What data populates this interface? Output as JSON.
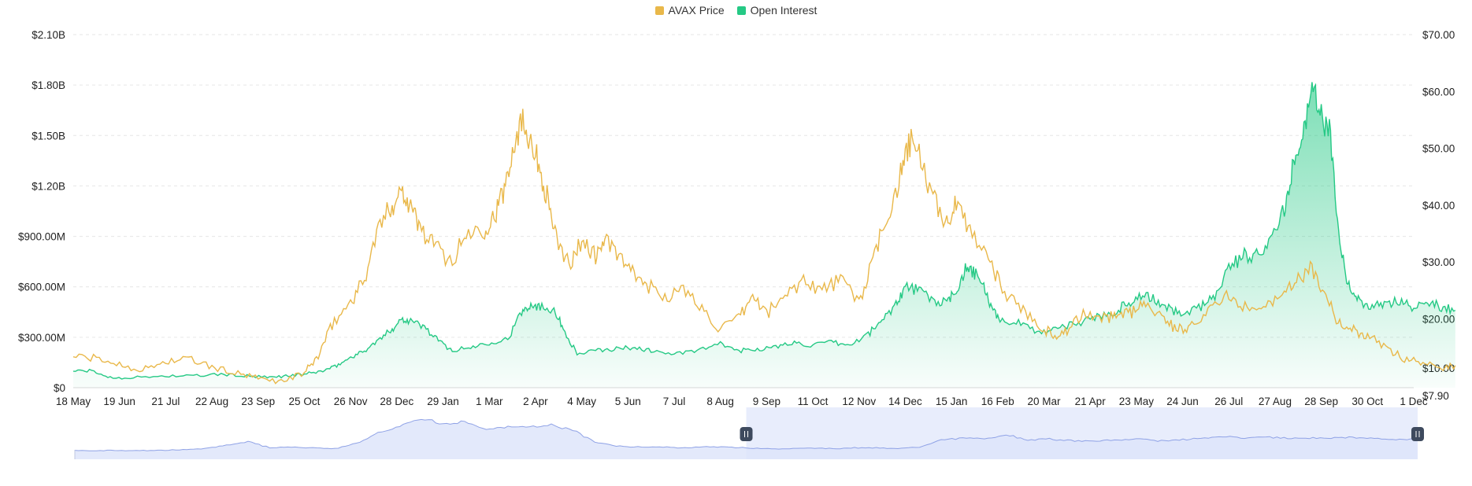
{
  "colors": {
    "price": "#E9B84A",
    "open_interest": "#25C985",
    "grid": "#E6E6E6",
    "navigator_line": "#8FA2E6",
    "navigator_fill": "#DCE3FA",
    "navigator_selection": "#E8EDFC",
    "handle": "#3E4A5E"
  },
  "legend": [
    {
      "label": "AVAX Price",
      "series": "price"
    },
    {
      "label": "Open Interest",
      "series": "open_interest"
    }
  ],
  "chart_data": {
    "type": "line",
    "title": "",
    "xlabel": "",
    "x_categories": [
      "18 May",
      "19 Jun",
      "21 Jul",
      "22 Aug",
      "23 Sep",
      "25 Oct",
      "26 Nov",
      "28 Dec",
      "29 Jan",
      "1 Mar",
      "2 Apr",
      "4 May",
      "5 Jun",
      "7 Jul",
      "8 Aug",
      "9 Sep",
      "11 Oct",
      "12 Nov",
      "14 Dec",
      "15 Jan",
      "16 Feb",
      "20 Mar",
      "21 Apr",
      "23 May",
      "24 Jun",
      "26 Jul",
      "27 Aug",
      "28 Sep",
      "30 Oct",
      "1 Dec"
    ],
    "left_axis": {
      "label": "",
      "ylim": [
        0,
        2100000000
      ],
      "ticks": [
        "$0",
        "$300.00M",
        "$600.00M",
        "$900.00M",
        "$1.20B",
        "$1.50B",
        "$1.80B",
        "$2.10B"
      ]
    },
    "right_axis": {
      "label": "",
      "ylim": [
        7.9,
        70
      ],
      "ticks": [
        "$7.90",
        "$10.00",
        "$20.00",
        "$30.00",
        "$40.00",
        "$50.00",
        "$60.00",
        "$70.00"
      ]
    },
    "grid": true,
    "legend_position": "top-center",
    "series": [
      {
        "name": "AVAX Price",
        "axis": "right",
        "type": "line",
        "points": [
          [
            0,
            13.5
          ],
          [
            0.5,
            13.0
          ],
          [
            1,
            12.0
          ],
          [
            1.5,
            11.0
          ],
          [
            2,
            12.5
          ],
          [
            2.5,
            13.0
          ],
          [
            3,
            11.5
          ],
          [
            3.5,
            10.5
          ],
          [
            4,
            9.5
          ],
          [
            4.5,
            9.0
          ],
          [
            5,
            10.5
          ],
          [
            5.3,
            13.5
          ],
          [
            5.6,
            19
          ],
          [
            6,
            23
          ],
          [
            6.3,
            27
          ],
          [
            6.6,
            36
          ],
          [
            6.9,
            40
          ],
          [
            7.1,
            43
          ],
          [
            7.3,
            40
          ],
          [
            7.5,
            36
          ],
          [
            7.8,
            33
          ],
          [
            8.2,
            30
          ],
          [
            8.5,
            35
          ],
          [
            8.9,
            36
          ],
          [
            9.1,
            38
          ],
          [
            9.3,
            42
          ],
          [
            9.5,
            50
          ],
          [
            9.7,
            55
          ],
          [
            9.9,
            52
          ],
          [
            10.1,
            46
          ],
          [
            10.3,
            40
          ],
          [
            10.5,
            32
          ],
          [
            10.8,
            30
          ],
          [
            11,
            34
          ],
          [
            11.3,
            31
          ],
          [
            11.5,
            34
          ],
          [
            11.8,
            31
          ],
          [
            12.1,
            28
          ],
          [
            12.4,
            26
          ],
          [
            12.8,
            24
          ],
          [
            13.2,
            25
          ],
          [
            13.6,
            22
          ],
          [
            14,
            18
          ],
          [
            14.4,
            20
          ],
          [
            14.7,
            24
          ],
          [
            15,
            21
          ],
          [
            15.4,
            24
          ],
          [
            15.8,
            27
          ],
          [
            16.2,
            25
          ],
          [
            16.6,
            27
          ],
          [
            17,
            23
          ],
          [
            17.3,
            30
          ],
          [
            17.6,
            38
          ],
          [
            17.9,
            45
          ],
          [
            18.1,
            51
          ],
          [
            18.3,
            49
          ],
          [
            18.6,
            41
          ],
          [
            18.9,
            37
          ],
          [
            19.1,
            40
          ],
          [
            19.4,
            36
          ],
          [
            19.8,
            31
          ],
          [
            20.1,
            25
          ],
          [
            20.5,
            22
          ],
          [
            20.9,
            19
          ],
          [
            21.2,
            17
          ],
          [
            21.5,
            18
          ],
          [
            21.9,
            21
          ],
          [
            22.3,
            20
          ],
          [
            22.6,
            21
          ],
          [
            22.9,
            21
          ],
          [
            23.2,
            23
          ],
          [
            23.6,
            20
          ],
          [
            23.9,
            18
          ],
          [
            24.2,
            19
          ],
          [
            24.6,
            22
          ],
          [
            25,
            24
          ],
          [
            25.4,
            22
          ],
          [
            25.8,
            23
          ],
          [
            26.2,
            24
          ],
          [
            26.5,
            27
          ],
          [
            26.8,
            29
          ],
          [
            27.1,
            24
          ],
          [
            27.4,
            19
          ],
          [
            27.7,
            18
          ],
          [
            28,
            17
          ],
          [
            28.4,
            15
          ],
          [
            28.8,
            13
          ],
          [
            29.2,
            12.5
          ],
          [
            29.6,
            11.5
          ],
          [
            29.9,
            11.8
          ]
        ]
      },
      {
        "name": "Open Interest",
        "axis": "left",
        "type": "area",
        "points": [
          [
            0,
            0.1
          ],
          [
            0.4,
            0.1
          ],
          [
            0.8,
            0.06
          ],
          [
            1.3,
            0.06
          ],
          [
            2,
            0.07
          ],
          [
            2.6,
            0.07
          ],
          [
            3.2,
            0.08
          ],
          [
            3.7,
            0.07
          ],
          [
            4.2,
            0.06
          ],
          [
            4.6,
            0.07
          ],
          [
            5,
            0.08
          ],
          [
            5.4,
            0.1
          ],
          [
            5.7,
            0.13
          ],
          [
            6,
            0.18
          ],
          [
            6.3,
            0.22
          ],
          [
            6.6,
            0.28
          ],
          [
            6.9,
            0.35
          ],
          [
            7.1,
            0.41
          ],
          [
            7.3,
            0.4
          ],
          [
            7.6,
            0.36
          ],
          [
            7.9,
            0.28
          ],
          [
            8.2,
            0.22
          ],
          [
            8.6,
            0.24
          ],
          [
            9,
            0.27
          ],
          [
            9.4,
            0.29
          ],
          [
            9.7,
            0.45
          ],
          [
            9.9,
            0.5
          ],
          [
            10.1,
            0.48
          ],
          [
            10.4,
            0.47
          ],
          [
            10.6,
            0.35
          ],
          [
            10.9,
            0.2
          ],
          [
            11.3,
            0.22
          ],
          [
            11.7,
            0.23
          ],
          [
            12.1,
            0.24
          ],
          [
            12.5,
            0.22
          ],
          [
            13,
            0.2
          ],
          [
            13.5,
            0.22
          ],
          [
            14,
            0.26
          ],
          [
            14.4,
            0.22
          ],
          [
            14.8,
            0.23
          ],
          [
            15.2,
            0.24
          ],
          [
            15.6,
            0.27
          ],
          [
            16,
            0.25
          ],
          [
            16.4,
            0.27
          ],
          [
            16.8,
            0.25
          ],
          [
            17.2,
            0.32
          ],
          [
            17.5,
            0.4
          ],
          [
            17.8,
            0.5
          ],
          [
            18,
            0.6
          ],
          [
            18.3,
            0.58
          ],
          [
            18.6,
            0.52
          ],
          [
            18.9,
            0.5
          ],
          [
            19.1,
            0.58
          ],
          [
            19.3,
            0.7
          ],
          [
            19.5,
            0.68
          ],
          [
            19.7,
            0.6
          ],
          [
            19.9,
            0.45
          ],
          [
            20.1,
            0.4
          ],
          [
            20.5,
            0.38
          ],
          [
            20.9,
            0.33
          ],
          [
            21.3,
            0.36
          ],
          [
            21.7,
            0.38
          ],
          [
            22.1,
            0.42
          ],
          [
            22.5,
            0.45
          ],
          [
            22.8,
            0.5
          ],
          [
            23.1,
            0.55
          ],
          [
            23.4,
            0.52
          ],
          [
            23.7,
            0.47
          ],
          [
            24,
            0.44
          ],
          [
            24.4,
            0.48
          ],
          [
            24.7,
            0.55
          ],
          [
            25,
            0.72
          ],
          [
            25.3,
            0.78
          ],
          [
            25.6,
            0.8
          ],
          [
            25.9,
            0.88
          ],
          [
            26.2,
            1.05
          ],
          [
            26.4,
            1.35
          ],
          [
            26.6,
            1.55
          ],
          [
            26.8,
            1.75
          ],
          [
            27,
            1.62
          ],
          [
            27.2,
            1.5
          ],
          [
            27.4,
            0.85
          ],
          [
            27.6,
            0.6
          ],
          [
            27.8,
            0.52
          ],
          [
            28.1,
            0.48
          ],
          [
            28.4,
            0.5
          ],
          [
            28.7,
            0.52
          ],
          [
            29,
            0.48
          ],
          [
            29.3,
            0.52
          ],
          [
            29.6,
            0.48
          ],
          [
            29.9,
            0.46
          ]
        ]
      }
    ]
  },
  "navigator": {
    "selection_start": 0.5,
    "selection_end": 1.0,
    "series": [
      0.1,
      0.1,
      0.1,
      0.1,
      0.1,
      0.11,
      0.12,
      0.16,
      0.2,
      0.13,
      0.14,
      0.13,
      0.12,
      0.18,
      0.3,
      0.38,
      0.46,
      0.4,
      0.43,
      0.35,
      0.37,
      0.36,
      0.39,
      0.33,
      0.2,
      0.15,
      0.14,
      0.14,
      0.13,
      0.14,
      0.14,
      0.13,
      0.12,
      0.12,
      0.13,
      0.12,
      0.13,
      0.13,
      0.12,
      0.14,
      0.22,
      0.24,
      0.23,
      0.28,
      0.22,
      0.23,
      0.21,
      0.2,
      0.22,
      0.23,
      0.21,
      0.22,
      0.24,
      0.26,
      0.24,
      0.25,
      0.24,
      0.24,
      0.24,
      0.25,
      0.24,
      0.22,
      0.23
    ]
  }
}
